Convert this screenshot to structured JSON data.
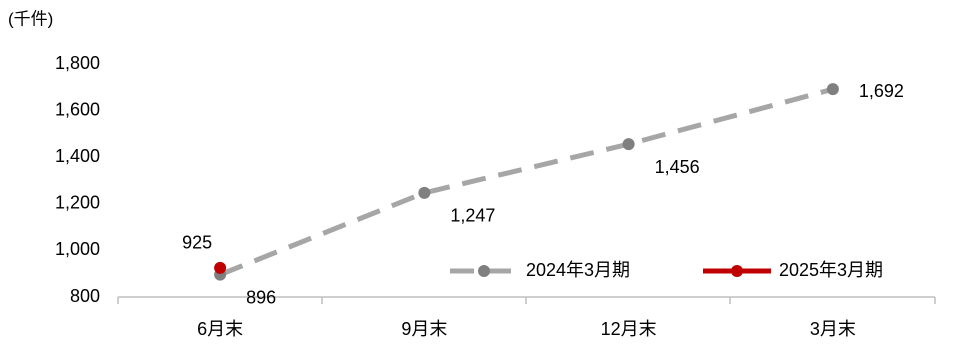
{
  "chart_data": {
    "type": "line",
    "y_axis_label": "(千件)",
    "categories": [
      "6月末",
      "9月末",
      "12月末",
      "3月末"
    ],
    "series": [
      {
        "name": "2024年3月期",
        "color": "#a6a6a6",
        "marker_color": "#7f7f7f",
        "dashed": true,
        "values": [
          896,
          1247,
          1456,
          1692
        ],
        "value_labels": [
          "896",
          "1,247",
          "1,456",
          "1,692"
        ]
      },
      {
        "name": "2025年3月期",
        "color": "#c00000",
        "marker_color": "#c00000",
        "dashed": false,
        "values": [
          925,
          null,
          null,
          null
        ],
        "value_labels": [
          "925",
          null,
          null,
          null
        ]
      }
    ],
    "ylim": [
      800,
      1800
    ],
    "yticks": [
      {
        "value": 800,
        "label": "800"
      },
      {
        "value": 1000,
        "label": "1,000"
      },
      {
        "value": 1200,
        "label": "1,200"
      },
      {
        "value": 1400,
        "label": "1,400"
      },
      {
        "value": 1600,
        "label": "1,600"
      },
      {
        "value": 1800,
        "label": "1,800"
      }
    ],
    "grid": false,
    "legend": "bottom-right"
  }
}
